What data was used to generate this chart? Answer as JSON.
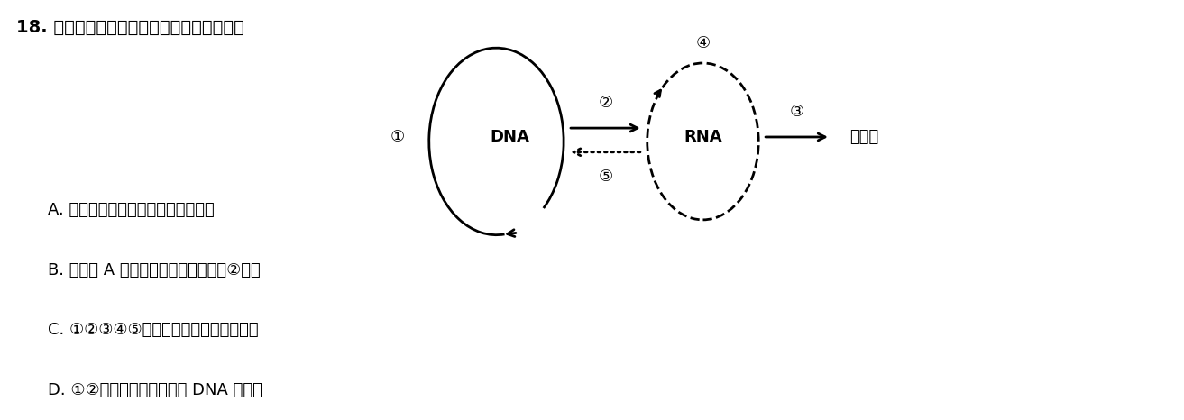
{
  "title": "18. 下列关于图示中心法则的叙述，错误的是",
  "background_color": "#ffffff",
  "text_color": "#000000",
  "options": [
    "A. 图示中心法则的内容由克里克提出",
    "B. 在胰岛 A 细胞的细胞核内仅能发生②过程",
    "C. ①②③④⑤过程均有氢键的形成与断裂",
    "D. ①②过程由不同的酶催化 DNA 的解旋"
  ],
  "dna_label": "DNA",
  "rna_label": "RNA",
  "protein_label": "蛋白质",
  "label_1": "①",
  "label_2": "②",
  "label_3": "③",
  "label_4": "④",
  "label_5": "⑤"
}
